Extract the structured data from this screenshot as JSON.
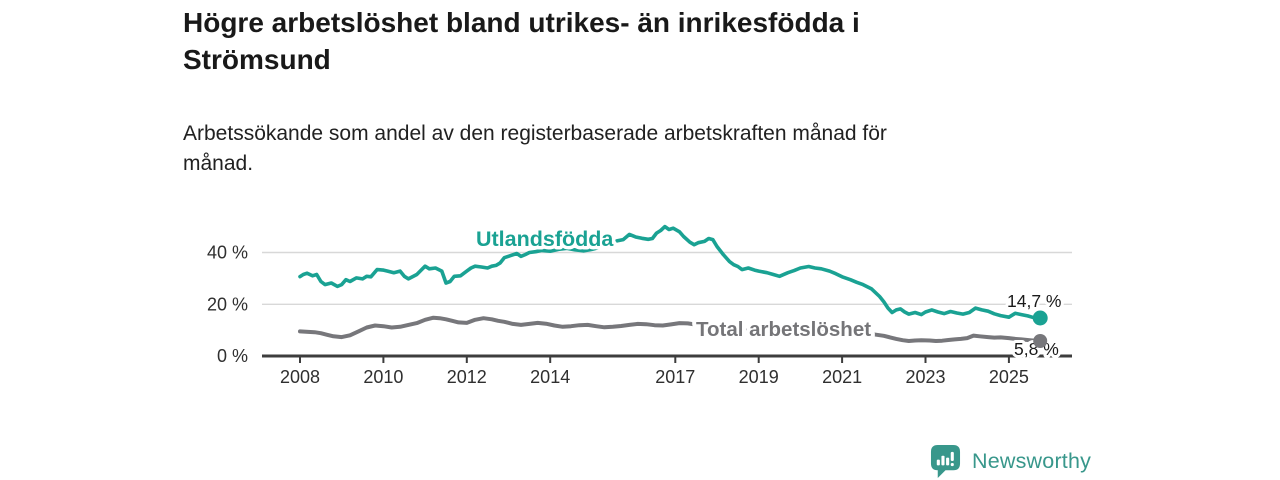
{
  "header": {
    "title_lines": [
      "Högre arbetslöshet bland utrikes- än inrikesfödda i",
      "Strömsund"
    ],
    "subtitle_lines": [
      "Arbetssökande som andel av den registerbaserade arbetskraften månad för",
      "månad."
    ]
  },
  "chart_data": {
    "type": "line",
    "unit": "%",
    "xlim": [
      2008,
      2025.75
    ],
    "ylim": [
      0,
      50
    ],
    "grid": "horizontal",
    "grid_color": "#d8d8d8",
    "axis_color": "#3d3d3d",
    "tick_label_color": "#2f2f2f",
    "x_ticks": [
      2008,
      2010,
      2012,
      2014,
      2017,
      2019,
      2021,
      2023,
      2025
    ],
    "y_ticks": [
      0,
      20,
      40
    ],
    "y_tick_labels": [
      "0 %",
      "20 %",
      "40 %"
    ],
    "series": [
      {
        "name": "Utlandsfödda",
        "color": "#1aa293",
        "end_label": "14,7 %",
        "end_value": 14.7,
        "points": [
          [
            2008.0,
            30.7
          ],
          [
            2008.08,
            31.5
          ],
          [
            2008.17,
            32.0
          ],
          [
            2008.3,
            31.0
          ],
          [
            2008.4,
            31.5
          ],
          [
            2008.5,
            28.8
          ],
          [
            2008.6,
            27.6
          ],
          [
            2008.75,
            28.2
          ],
          [
            2008.9,
            26.9
          ],
          [
            2009.0,
            27.6
          ],
          [
            2009.1,
            29.5
          ],
          [
            2009.2,
            28.8
          ],
          [
            2009.35,
            30.2
          ],
          [
            2009.5,
            29.8
          ],
          [
            2009.6,
            30.8
          ],
          [
            2009.7,
            30.6
          ],
          [
            2009.85,
            33.4
          ],
          [
            2010.0,
            33.2
          ],
          [
            2010.1,
            32.8
          ],
          [
            2010.25,
            32.2
          ],
          [
            2010.4,
            32.8
          ],
          [
            2010.5,
            30.8
          ],
          [
            2010.6,
            29.8
          ],
          [
            2010.8,
            31.5
          ],
          [
            2010.9,
            33.1
          ],
          [
            2011.0,
            34.7
          ],
          [
            2011.1,
            33.7
          ],
          [
            2011.25,
            34.0
          ],
          [
            2011.4,
            32.8
          ],
          [
            2011.5,
            28.2
          ],
          [
            2011.6,
            28.8
          ],
          [
            2011.7,
            30.8
          ],
          [
            2011.85,
            31.0
          ],
          [
            2012.0,
            32.8
          ],
          [
            2012.1,
            34.0
          ],
          [
            2012.2,
            34.7
          ],
          [
            2012.35,
            34.4
          ],
          [
            2012.5,
            34.0
          ],
          [
            2012.6,
            34.7
          ],
          [
            2012.7,
            35.0
          ],
          [
            2012.8,
            36.0
          ],
          [
            2012.9,
            38.0
          ],
          [
            2013.05,
            38.8
          ],
          [
            2013.2,
            39.6
          ],
          [
            2013.3,
            38.5
          ],
          [
            2013.4,
            39.2
          ],
          [
            2013.5,
            40.0
          ],
          [
            2013.65,
            40.3
          ],
          [
            2013.8,
            40.8
          ],
          [
            2014.0,
            40.5
          ],
          [
            2014.2,
            41.2
          ],
          [
            2014.4,
            41.6
          ],
          [
            2014.6,
            41.0
          ],
          [
            2014.8,
            40.6
          ],
          [
            2015.0,
            41.2
          ],
          [
            2015.2,
            42.0
          ],
          [
            2015.4,
            43.0
          ],
          [
            2015.6,
            44.5
          ],
          [
            2015.75,
            45.0
          ],
          [
            2015.9,
            47.0
          ],
          [
            2016.05,
            46.0
          ],
          [
            2016.2,
            45.5
          ],
          [
            2016.35,
            45.1
          ],
          [
            2016.45,
            45.4
          ],
          [
            2016.55,
            47.5
          ],
          [
            2016.65,
            48.5
          ],
          [
            2016.75,
            50.0
          ],
          [
            2016.85,
            48.9
          ],
          [
            2016.95,
            49.4
          ],
          [
            2017.1,
            48.0
          ],
          [
            2017.2,
            46.2
          ],
          [
            2017.35,
            44.0
          ],
          [
            2017.45,
            43.0
          ],
          [
            2017.55,
            43.8
          ],
          [
            2017.7,
            44.3
          ],
          [
            2017.8,
            45.4
          ],
          [
            2017.9,
            45.0
          ],
          [
            2018.0,
            42.3
          ],
          [
            2018.15,
            39.2
          ],
          [
            2018.3,
            36.5
          ],
          [
            2018.4,
            35.3
          ],
          [
            2018.5,
            34.6
          ],
          [
            2018.6,
            33.4
          ],
          [
            2018.75,
            34.0
          ],
          [
            2018.9,
            33.2
          ],
          [
            2019.0,
            32.8
          ],
          [
            2019.2,
            32.2
          ],
          [
            2019.35,
            31.5
          ],
          [
            2019.5,
            30.8
          ],
          [
            2019.7,
            32.2
          ],
          [
            2019.85,
            33.0
          ],
          [
            2020.0,
            34.0
          ],
          [
            2020.2,
            34.6
          ],
          [
            2020.35,
            34.0
          ],
          [
            2020.5,
            33.7
          ],
          [
            2020.7,
            32.8
          ],
          [
            2020.85,
            31.8
          ],
          [
            2021.0,
            30.6
          ],
          [
            2021.2,
            29.5
          ],
          [
            2021.35,
            28.5
          ],
          [
            2021.5,
            27.6
          ],
          [
            2021.7,
            26.0
          ],
          [
            2021.9,
            23.0
          ],
          [
            2022.0,
            21.0
          ],
          [
            2022.1,
            18.5
          ],
          [
            2022.2,
            16.8
          ],
          [
            2022.3,
            17.8
          ],
          [
            2022.4,
            18.2
          ],
          [
            2022.5,
            17.0
          ],
          [
            2022.6,
            16.2
          ],
          [
            2022.75,
            16.8
          ],
          [
            2022.9,
            16.0
          ],
          [
            2023.0,
            17.0
          ],
          [
            2023.15,
            17.8
          ],
          [
            2023.3,
            17.0
          ],
          [
            2023.45,
            16.4
          ],
          [
            2023.6,
            17.2
          ],
          [
            2023.75,
            16.6
          ],
          [
            2023.9,
            16.2
          ],
          [
            2024.05,
            16.8
          ],
          [
            2024.2,
            18.5
          ],
          [
            2024.35,
            17.8
          ],
          [
            2024.5,
            17.3
          ],
          [
            2024.65,
            16.3
          ],
          [
            2024.8,
            15.6
          ],
          [
            2025.0,
            15.0
          ],
          [
            2025.15,
            16.5
          ],
          [
            2025.3,
            16.0
          ],
          [
            2025.45,
            15.5
          ],
          [
            2025.6,
            14.8
          ],
          [
            2025.75,
            14.7
          ]
        ]
      },
      {
        "name": "Total arbetslöshet",
        "color": "#77777b",
        "label_color": "#757578",
        "end_label": "5,8 %",
        "end_value": 5.8,
        "points": [
          [
            2008.0,
            9.5
          ],
          [
            2008.2,
            9.3
          ],
          [
            2008.35,
            9.2
          ],
          [
            2008.5,
            8.8
          ],
          [
            2008.65,
            8.2
          ],
          [
            2008.8,
            7.6
          ],
          [
            2009.0,
            7.3
          ],
          [
            2009.2,
            8.0
          ],
          [
            2009.4,
            9.5
          ],
          [
            2009.6,
            11.0
          ],
          [
            2009.8,
            11.8
          ],
          [
            2010.0,
            11.5
          ],
          [
            2010.2,
            11.0
          ],
          [
            2010.4,
            11.3
          ],
          [
            2010.6,
            12.0
          ],
          [
            2010.8,
            12.7
          ],
          [
            2011.0,
            14.0
          ],
          [
            2011.2,
            14.8
          ],
          [
            2011.35,
            14.6
          ],
          [
            2011.5,
            14.2
          ],
          [
            2011.65,
            13.6
          ],
          [
            2011.8,
            13.0
          ],
          [
            2012.0,
            12.8
          ],
          [
            2012.2,
            14.0
          ],
          [
            2012.4,
            14.6
          ],
          [
            2012.6,
            14.2
          ],
          [
            2012.75,
            13.6
          ],
          [
            2012.9,
            13.2
          ],
          [
            2013.1,
            12.4
          ],
          [
            2013.3,
            12.0
          ],
          [
            2013.5,
            12.4
          ],
          [
            2013.7,
            12.8
          ],
          [
            2013.9,
            12.5
          ],
          [
            2014.1,
            11.8
          ],
          [
            2014.3,
            11.3
          ],
          [
            2014.5,
            11.5
          ],
          [
            2014.7,
            11.9
          ],
          [
            2014.9,
            12.0
          ],
          [
            2015.1,
            11.5
          ],
          [
            2015.3,
            11.1
          ],
          [
            2015.5,
            11.3
          ],
          [
            2015.7,
            11.6
          ],
          [
            2015.9,
            12.0
          ],
          [
            2016.1,
            12.4
          ],
          [
            2016.3,
            12.3
          ],
          [
            2016.5,
            11.9
          ],
          [
            2016.7,
            11.8
          ],
          [
            2016.9,
            12.2
          ],
          [
            2017.1,
            12.7
          ],
          [
            2017.3,
            12.6
          ],
          [
            2017.5,
            12.1
          ],
          [
            2017.7,
            11.7
          ],
          [
            2017.9,
            11.4
          ],
          [
            2018.1,
            11.1
          ],
          [
            2018.3,
            10.7
          ],
          [
            2018.5,
            10.3
          ],
          [
            2018.75,
            9.8
          ],
          [
            2019.0,
            9.5
          ],
          [
            2019.25,
            9.1
          ],
          [
            2019.5,
            9.0
          ],
          [
            2019.75,
            9.3
          ],
          [
            2020.0,
            9.9
          ],
          [
            2020.25,
            10.6
          ],
          [
            2020.5,
            10.8
          ],
          [
            2020.75,
            10.3
          ],
          [
            2021.0,
            9.9
          ],
          [
            2021.25,
            9.4
          ],
          [
            2021.5,
            8.9
          ],
          [
            2021.75,
            8.4
          ],
          [
            2022.0,
            7.8
          ],
          [
            2022.15,
            7.2
          ],
          [
            2022.3,
            6.6
          ],
          [
            2022.45,
            6.1
          ],
          [
            2022.6,
            5.8
          ],
          [
            2022.75,
            6.0
          ],
          [
            2022.9,
            6.1
          ],
          [
            2023.1,
            6.0
          ],
          [
            2023.25,
            5.8
          ],
          [
            2023.4,
            5.9
          ],
          [
            2023.55,
            6.2
          ],
          [
            2023.7,
            6.4
          ],
          [
            2023.85,
            6.6
          ],
          [
            2024.0,
            6.9
          ],
          [
            2024.15,
            7.9
          ],
          [
            2024.3,
            7.6
          ],
          [
            2024.5,
            7.3
          ],
          [
            2024.65,
            7.1
          ],
          [
            2024.8,
            7.2
          ],
          [
            2025.0,
            6.9
          ],
          [
            2025.15,
            6.6
          ],
          [
            2025.3,
            6.4
          ],
          [
            2025.5,
            6.1
          ],
          [
            2025.65,
            5.9
          ],
          [
            2025.75,
            5.8
          ]
        ]
      }
    ]
  },
  "branding": {
    "logo_text": "Newsworthy",
    "logo_color": "#38978b",
    "logo_icon": "speech-bubble-bar-chart-icon"
  }
}
